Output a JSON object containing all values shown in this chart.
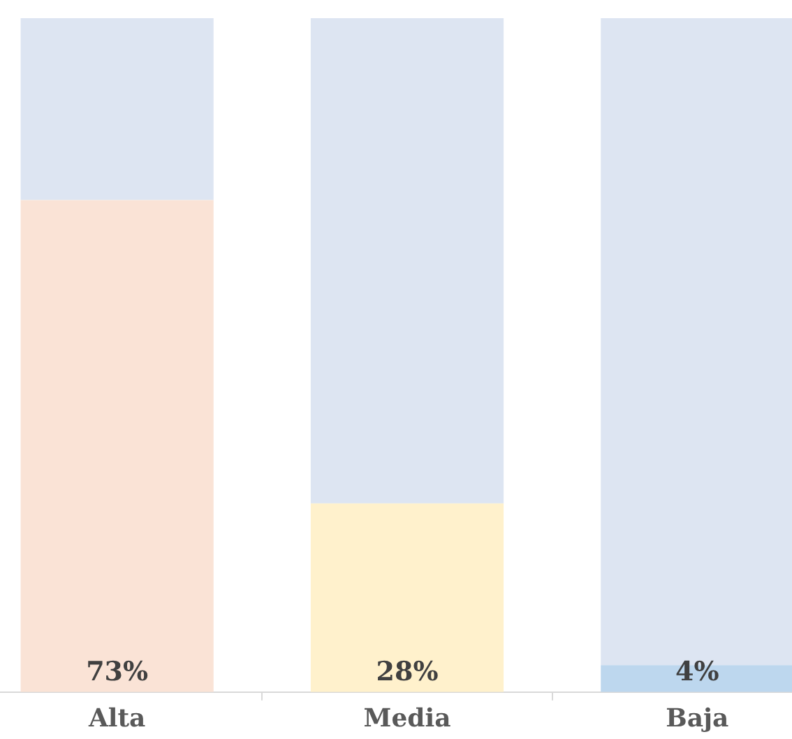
{
  "chart_data": {
    "type": "bar",
    "stacked": true,
    "categories": [
      "Alta",
      "Media",
      "Baja"
    ],
    "series": [
      {
        "colors": [
          "#fae3d6",
          "#fff1cc",
          "#bdd7ee"
        ],
        "values": [
          73,
          28,
          4
        ],
        "value_labels": [
          "73%",
          "28%",
          "4%"
        ]
      },
      {
        "color": "#dde5f2",
        "values": [
          27,
          72,
          96
        ]
      }
    ],
    "tick_labels": "x",
    "grid": false,
    "legend": false
  }
}
